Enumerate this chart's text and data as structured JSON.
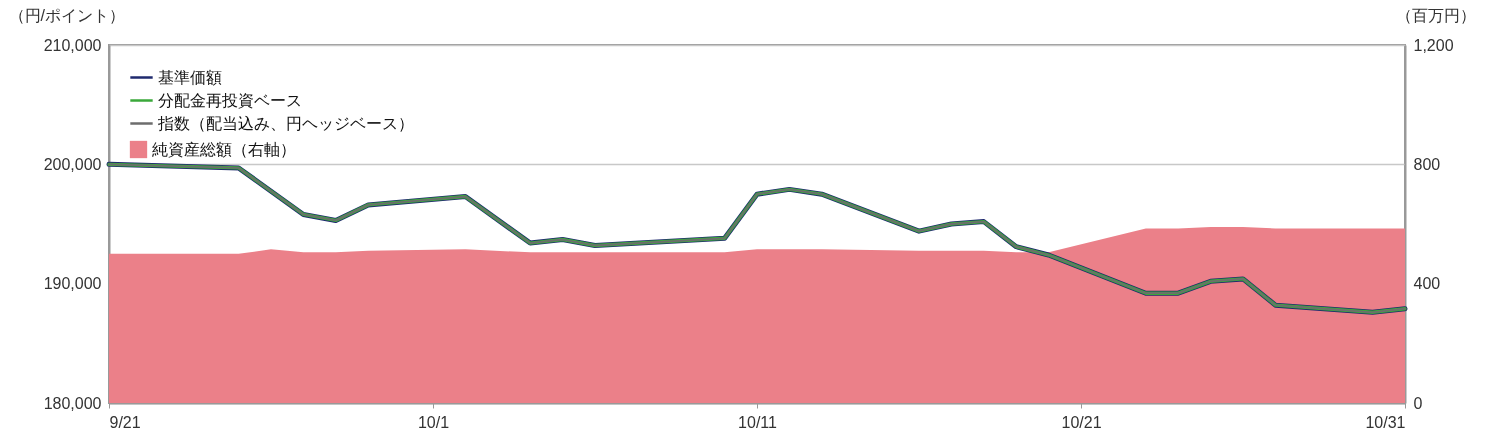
{
  "chart_data": {
    "type": "line",
    "ylabel": "（円/ポイント）",
    "y2label": "（百万円）",
    "xlim": [
      "--09-21",
      "--10-31"
    ],
    "xticks": [
      {
        "value": "--09-21",
        "label": "9/21"
      },
      {
        "value": "--10-01",
        "label": "10/1"
      },
      {
        "value": "--10-11",
        "label": "10/11"
      },
      {
        "value": "--10-21",
        "label": "10/21"
      },
      {
        "value": "--10-31",
        "label": "10/31"
      }
    ],
    "ylim": [
      180000,
      210000
    ],
    "yticks": [
      {
        "value": 180000,
        "label": "180,000"
      },
      {
        "value": 190000,
        "label": "190,000"
      },
      {
        "value": 200000,
        "label": "200,000"
      },
      {
        "value": 210000,
        "label": "210,000"
      }
    ],
    "y2lim": [
      0,
      1200
    ],
    "y2ticks": [
      0,
      400,
      800,
      {
        "value": 1200,
        "label": "1,200"
      }
    ],
    "grid": "y",
    "legend": "top left",
    "series": [
      {
        "name": "純資産総額（右軸）",
        "type": "area",
        "axis": "y2",
        "color": "#eb8089",
        "x": [
          "--09-21",
          "--09-25",
          "--09-26",
          "--09-27",
          "--09-28",
          "--09-29",
          "--10-02",
          "--10-04",
          "--10-05",
          "--10-06",
          "--10-10",
          "--10-11",
          "--10-12",
          "--10-13",
          "--10-16",
          "--10-17",
          "--10-18",
          "--10-19",
          "--10-20",
          "--10-23",
          "--10-24",
          "--10-25",
          "--10-26",
          "--10-27",
          "--10-30",
          "--10-31"
        ],
        "values": [
          500,
          500,
          515,
          505,
          505,
          510,
          515,
          505,
          505,
          505,
          505,
          515,
          515,
          515,
          510,
          510,
          510,
          505,
          505,
          585,
          585,
          590,
          590,
          585,
          585,
          585
        ]
      },
      {
        "name": "基準価額",
        "color": "#1f2a6e",
        "x": [
          "--09-21",
          "--09-25",
          "--09-27",
          "--09-28",
          "--09-29",
          "--10-02",
          "--10-04",
          "--10-05",
          "--10-06",
          "--10-10",
          "--10-11",
          "--10-12",
          "--10-13",
          "--10-16",
          "--10-17",
          "--10-18",
          "--10-19",
          "--10-20",
          "--10-23",
          "--10-24",
          "--10-25",
          "--10-26",
          "--10-27",
          "--10-30",
          "--10-31"
        ],
        "values": [
          200000,
          199700,
          195800,
          195300,
          196600,
          197300,
          193400,
          193700,
          193200,
          193800,
          197500,
          197900,
          197500,
          194400,
          195000,
          195200,
          193100,
          192400,
          189200,
          189200,
          190200,
          190400,
          188200,
          187600,
          187900
        ]
      },
      {
        "name": "分配金再投資ベース",
        "color": "#3aa83a",
        "x": [
          "--09-21",
          "--09-25",
          "--09-27",
          "--09-28",
          "--09-29",
          "--10-02",
          "--10-04",
          "--10-05",
          "--10-06",
          "--10-10",
          "--10-11",
          "--10-12",
          "--10-13",
          "--10-16",
          "--10-17",
          "--10-18",
          "--10-19",
          "--10-20",
          "--10-23",
          "--10-24",
          "--10-25",
          "--10-26",
          "--10-27",
          "--10-30",
          "--10-31"
        ],
        "values": [
          200000,
          199700,
          195800,
          195300,
          196600,
          197300,
          193400,
          193700,
          193200,
          193800,
          197500,
          197900,
          197500,
          194400,
          195000,
          195200,
          193100,
          192400,
          189200,
          189200,
          190200,
          190400,
          188200,
          187600,
          187900
        ]
      },
      {
        "name": "指数（配当込み、円ヘッジベース）",
        "color": "#6d6d6d",
        "x": [
          "--09-21",
          "--09-25",
          "--09-27",
          "--09-28",
          "--09-29",
          "--10-02",
          "--10-04",
          "--10-05",
          "--10-06",
          "--10-10",
          "--10-11",
          "--10-12",
          "--10-13",
          "--10-16",
          "--10-17",
          "--10-18",
          "--10-19",
          "--10-20",
          "--10-23",
          "--10-24",
          "--10-25",
          "--10-26",
          "--10-27",
          "--10-30",
          "--10-31"
        ],
        "values": [
          200000,
          199700,
          195800,
          195300,
          196600,
          197300,
          193400,
          193700,
          193200,
          193800,
          197500,
          197900,
          197500,
          194400,
          195000,
          195200,
          193100,
          192400,
          189200,
          189200,
          190200,
          190400,
          188200,
          187600,
          187900
        ]
      }
    ]
  }
}
